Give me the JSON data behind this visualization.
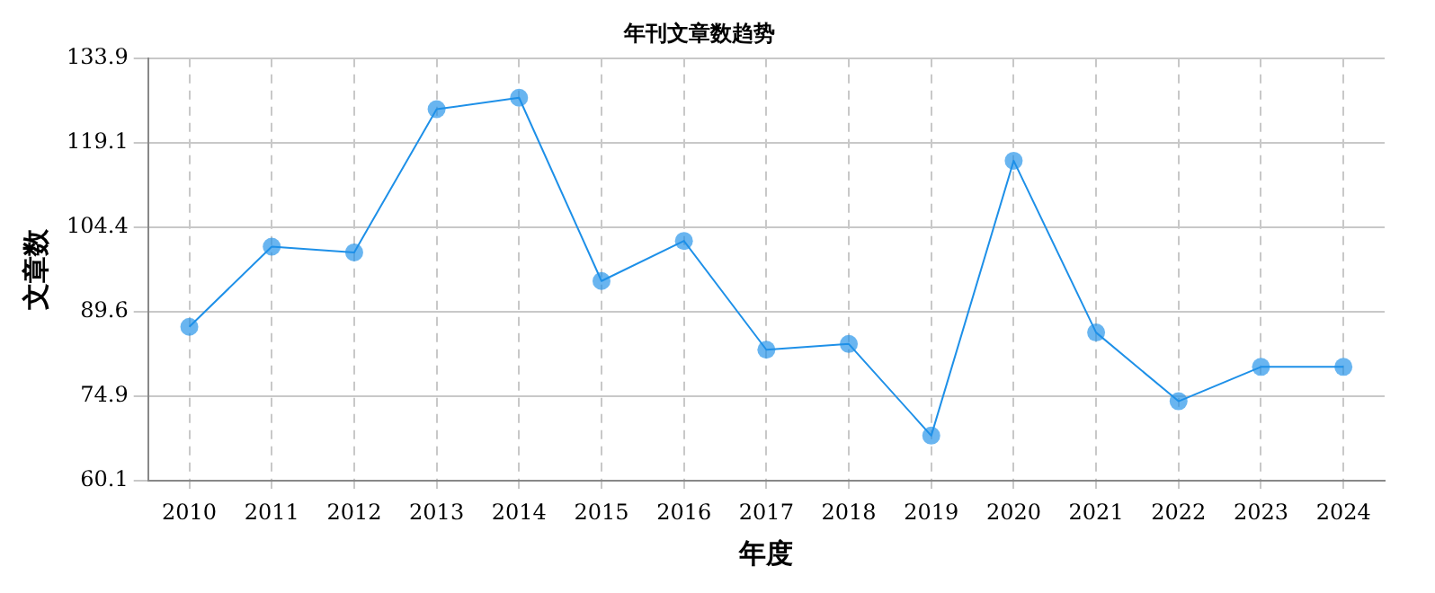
{
  "chart_data": {
    "type": "line",
    "title": "年刊文章数趋势",
    "xlabel": "年度",
    "ylabel": "文章数",
    "categories": [
      "2010",
      "2011",
      "2012",
      "2013",
      "2014",
      "2015",
      "2016",
      "2017",
      "2018",
      "2019",
      "2020",
      "2021",
      "2022",
      "2023",
      "2024"
    ],
    "series": [
      {
        "color": "#1e90e8",
        "values": [
          87,
          101,
          100,
          125,
          127,
          95,
          102,
          83,
          84,
          68,
          116,
          86,
          74,
          80,
          80
        ]
      }
    ],
    "ylim": [
      60.1,
      133.9
    ],
    "yticks": [
      60.1,
      74.9,
      89.6,
      104.4,
      119.1,
      133.9
    ],
    "grid": true,
    "marker": "circle",
    "line_style": "solid",
    "legend": false
  }
}
